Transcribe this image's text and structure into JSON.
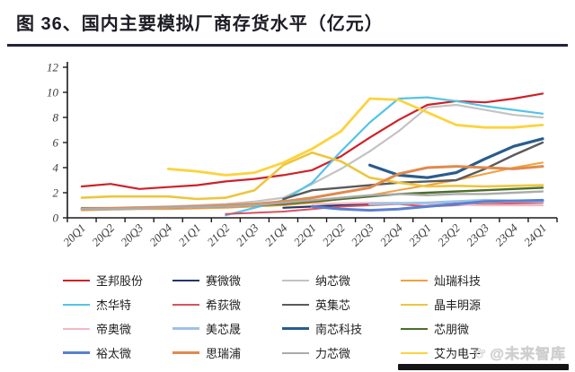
{
  "header": {
    "title": "图 36、国内主要模拟厂商存货水平（亿元）"
  },
  "watermark": {
    "text": "@未来智库",
    "icon": "paw-icon"
  },
  "chart_data": {
    "type": "line",
    "title": "国内主要模拟厂商存货水平",
    "unit": "亿元",
    "x": [
      "20Q1",
      "20Q2",
      "20Q3",
      "20Q4",
      "21Q1",
      "21Q2",
      "21Q3",
      "21Q4",
      "22Q1",
      "22Q2",
      "22Q3",
      "22Q4",
      "23Q1",
      "23Q2",
      "23Q3",
      "23Q4",
      "24Q1"
    ],
    "ylim": [
      0,
      12
    ],
    "yticks": [
      0,
      2,
      4,
      6,
      8,
      10,
      12
    ],
    "grid": false,
    "legend_position": "bottom",
    "axis_color": "#1a1a1a",
    "series": [
      {
        "name": "圣邦股份",
        "color": "#cf2128",
        "width": 2.2,
        "values": [
          2.5,
          2.7,
          2.3,
          2.45,
          2.6,
          2.9,
          3.1,
          3.4,
          3.8,
          4.9,
          6.4,
          7.8,
          9.0,
          9.3,
          9.2,
          9.5,
          9.9
        ]
      },
      {
        "name": "赛微微",
        "color": "#24356b",
        "width": 2.2,
        "values": [
          null,
          null,
          null,
          null,
          null,
          null,
          null,
          0.8,
          0.9,
          1.0,
          1.1,
          1.15,
          1.2,
          1.25,
          1.3,
          1.35,
          1.4
        ]
      },
      {
        "name": "纳芯微",
        "color": "#c3c3c3",
        "width": 2.2,
        "values": [
          0.8,
          0.8,
          0.85,
          0.9,
          1.0,
          1.1,
          1.3,
          1.6,
          2.7,
          3.9,
          5.3,
          6.9,
          8.8,
          9.0,
          8.6,
          8.2,
          8.0
        ]
      },
      {
        "name": "灿瑞科技",
        "color": "#f2a03d",
        "width": 2.0,
        "values": [
          0.6,
          0.65,
          0.7,
          0.7,
          0.75,
          0.8,
          0.9,
          1.0,
          1.2,
          1.5,
          1.8,
          2.2,
          2.6,
          3.0,
          3.5,
          4.0,
          4.4
        ]
      },
      {
        "name": "杰华特",
        "color": "#53c4e8",
        "width": 2.2,
        "values": [
          null,
          null,
          null,
          null,
          null,
          0.2,
          0.8,
          1.4,
          2.8,
          5.3,
          7.6,
          9.5,
          9.6,
          9.3,
          8.9,
          8.6,
          8.3
        ]
      },
      {
        "name": "希荻微",
        "color": "#d8535f",
        "width": 2.0,
        "values": [
          null,
          null,
          null,
          null,
          null,
          0.3,
          0.4,
          0.5,
          0.7,
          0.9,
          1.0,
          1.1,
          0.9,
          1.0,
          1.1,
          1.15,
          1.2
        ]
      },
      {
        "name": "英集芯",
        "color": "#5a5a5a",
        "width": 2.4,
        "values": [
          null,
          null,
          null,
          null,
          null,
          null,
          null,
          1.5,
          2.2,
          2.4,
          2.6,
          2.8,
          2.9,
          3.0,
          3.9,
          5.0,
          6.0
        ]
      },
      {
        "name": "晶丰明源",
        "color": "#edc63d",
        "width": 2.6,
        "values": [
          1.6,
          1.7,
          1.7,
          1.7,
          1.5,
          1.6,
          2.2,
          4.2,
          5.2,
          4.5,
          3.2,
          2.8,
          2.5,
          2.55,
          2.5,
          2.55,
          2.6
        ]
      },
      {
        "name": "帝奥微",
        "color": "#f3b9c3",
        "width": 2.2,
        "values": [
          null,
          null,
          null,
          null,
          null,
          null,
          null,
          null,
          1.1,
          1.15,
          1.2,
          1.2,
          1.1,
          1.05,
          1.0,
          1.0,
          1.0
        ]
      },
      {
        "name": "美芯晟",
        "color": "#9dc3e6",
        "width": 3.0,
        "values": [
          null,
          null,
          null,
          null,
          null,
          null,
          null,
          null,
          null,
          null,
          1.1,
          1.15,
          1.2,
          1.3,
          1.4,
          1.35,
          1.3
        ]
      },
      {
        "name": "南芯科技",
        "color": "#275d8d",
        "width": 3.2,
        "values": [
          null,
          null,
          null,
          null,
          null,
          null,
          null,
          null,
          null,
          null,
          4.2,
          3.4,
          3.2,
          3.6,
          4.7,
          5.7,
          6.3
        ]
      },
      {
        "name": "芯朋微",
        "color": "#4a6e28",
        "width": 2.4,
        "values": [
          0.75,
          0.75,
          0.8,
          0.8,
          0.85,
          0.9,
          1.0,
          1.1,
          1.3,
          1.5,
          1.7,
          1.9,
          2.0,
          2.1,
          2.2,
          2.3,
          2.4
        ]
      },
      {
        "name": "裕太微",
        "color": "#5b7fd0",
        "width": 3.0,
        "values": [
          null,
          null,
          null,
          null,
          null,
          null,
          null,
          null,
          0.9,
          0.7,
          0.6,
          0.7,
          0.9,
          1.1,
          1.3,
          1.35,
          1.4
        ]
      },
      {
        "name": "思瑞浦",
        "color": "#e08a4e",
        "width": 3.0,
        "values": [
          0.7,
          0.75,
          0.8,
          0.85,
          0.9,
          1.0,
          1.1,
          1.3,
          1.6,
          2.0,
          2.4,
          3.5,
          4.0,
          4.1,
          4.0,
          3.9,
          4.1
        ]
      },
      {
        "name": "力芯微",
        "color": "#ababab",
        "width": 2.4,
        "values": [
          0.7,
          0.7,
          0.75,
          0.8,
          0.85,
          0.9,
          1.0,
          1.2,
          1.4,
          1.6,
          1.8,
          1.9,
          1.8,
          1.9,
          1.9,
          2.0,
          2.1
        ]
      },
      {
        "name": "艾为电子",
        "color": "#fdd23e",
        "width": 2.8,
        "values": [
          null,
          null,
          null,
          3.9,
          3.7,
          3.4,
          3.6,
          4.4,
          5.5,
          6.9,
          9.5,
          9.4,
          8.4,
          7.4,
          7.2,
          7.2,
          7.4
        ]
      }
    ]
  }
}
